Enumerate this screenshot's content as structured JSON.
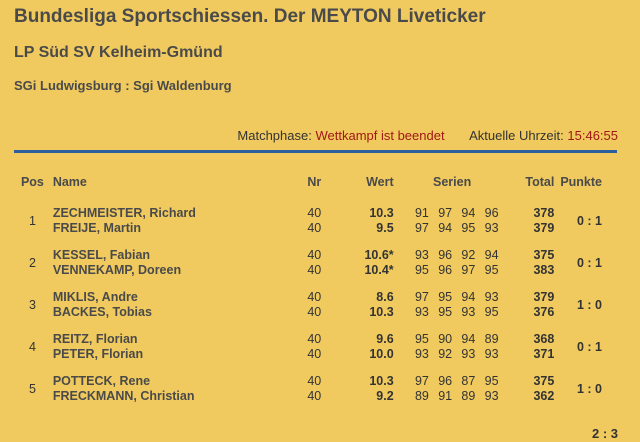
{
  "header": {
    "title": "Bundesliga Sportschiessen. Der MEYTON Liveticker",
    "subtitle": "LP Süd SV Kelheim-Gmünd",
    "match": "SGi Ludwigsburg : Sgi Waldenburg"
  },
  "status": {
    "phase_label": "Matchphase:",
    "phase_value": "Wettkampf ist beendet",
    "time_label": "Aktuelle Uhrzeit:",
    "time_value": "15:46:55"
  },
  "table": {
    "headers": {
      "pos": "Pos",
      "name": "Name",
      "nr": "Nr",
      "wert": "Wert",
      "serien": "Serien",
      "total": "Total",
      "punkte": "Punkte"
    },
    "matches": [
      {
        "pos": "1",
        "punkte": "0 : 1",
        "shooters": [
          {
            "name": "ZECHMEISTER, Richard",
            "nr": "40",
            "wert": "10.3",
            "serien": [
              "91",
              "97",
              "94",
              "96"
            ],
            "total": "378"
          },
          {
            "name": "FREIJE, Martin",
            "nr": "40",
            "wert": "9.5",
            "serien": [
              "97",
              "94",
              "95",
              "93"
            ],
            "total": "379"
          }
        ]
      },
      {
        "pos": "2",
        "punkte": "0 : 1",
        "shooters": [
          {
            "name": "KESSEL, Fabian",
            "nr": "40",
            "wert": "10.6*",
            "serien": [
              "93",
              "96",
              "92",
              "94"
            ],
            "total": "375"
          },
          {
            "name": "VENNEKAMP, Doreen",
            "nr": "40",
            "wert": "10.4*",
            "serien": [
              "95",
              "96",
              "97",
              "95"
            ],
            "total": "383"
          }
        ]
      },
      {
        "pos": "3",
        "punkte": "1 : 0",
        "shooters": [
          {
            "name": "MIKLIS, Andre",
            "nr": "40",
            "wert": "8.6",
            "serien": [
              "97",
              "95",
              "94",
              "93"
            ],
            "total": "379"
          },
          {
            "name": "BACKES, Tobias",
            "nr": "40",
            "wert": "10.3",
            "serien": [
              "93",
              "95",
              "93",
              "95"
            ],
            "total": "376"
          }
        ]
      },
      {
        "pos": "4",
        "punkte": "0 : 1",
        "shooters": [
          {
            "name": "REITZ, Florian",
            "nr": "40",
            "wert": "9.6",
            "serien": [
              "95",
              "90",
              "94",
              "89"
            ],
            "total": "368"
          },
          {
            "name": "PETER, Florian",
            "nr": "40",
            "wert": "10.0",
            "serien": [
              "93",
              "92",
              "93",
              "93"
            ],
            "total": "371"
          }
        ]
      },
      {
        "pos": "5",
        "punkte": "1 : 0",
        "shooters": [
          {
            "name": "POTTECK, Rene",
            "nr": "40",
            "wert": "10.3",
            "serien": [
              "97",
              "96",
              "87",
              "95"
            ],
            "total": "375"
          },
          {
            "name": "FRECKMANN, Christian",
            "nr": "40",
            "wert": "9.2",
            "serien": [
              "89",
              "91",
              "89",
              "93"
            ],
            "total": "362"
          }
        ]
      }
    ],
    "final_score": "2 : 3"
  },
  "colors": {
    "background": "#f0ca5e",
    "rule": "#2b5f9e",
    "status_value": "#a01818"
  }
}
